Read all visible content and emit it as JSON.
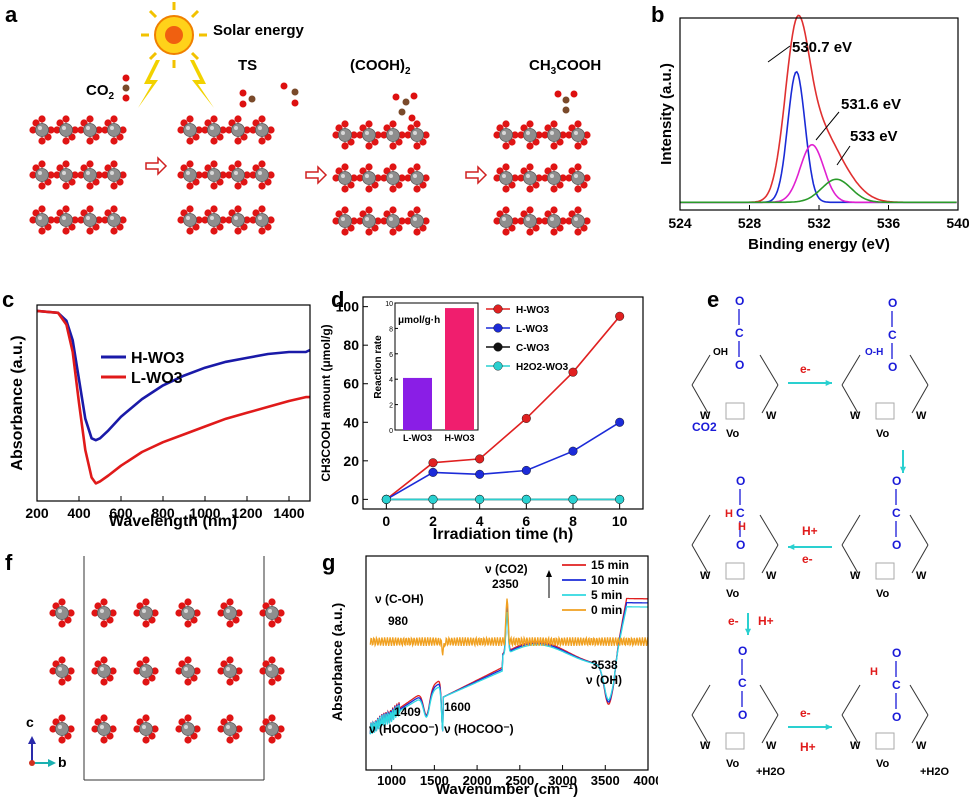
{
  "panel_labels": {
    "a": "a",
    "b": "b",
    "c": "c",
    "d": "d",
    "e": "e",
    "f": "f",
    "g": "g"
  },
  "panel_a": {
    "solar_label": "Solar energy",
    "co2_label": "CO",
    "co2_sub": "2",
    "ts_label": "TS",
    "cooh_label": "(COOH)",
    "cooh_sub": "2",
    "ch3_label": "CH",
    "ch3_sub": "3",
    "ch3_tail": "COOH"
  },
  "panel_e": {
    "e_minus": "e-",
    "h_plus": "H+",
    "vo": "Vo",
    "co2": "CO2",
    "h2o": "+H2O",
    "w": "W"
  },
  "panel_f": {
    "axis_c": "c",
    "axis_b": "b"
  },
  "chart_data": [
    {
      "panel": "b",
      "type": "line",
      "xlabel": "Binding energy (eV)",
      "ylabel": "Intensity (a.u.)",
      "xlim": [
        524,
        540
      ],
      "xticks": [
        524,
        528,
        532,
        536,
        540
      ],
      "annotations": [
        "530.7 eV",
        "531.6 eV",
        "533 eV"
      ],
      "series": [
        {
          "color": "#e03030",
          "peaks": [
            {
              "center": 530.7,
              "height": 0.78,
              "width": 0.95
            },
            {
              "center": 531.8,
              "height": 0.32,
              "width": 1.4
            },
            {
              "center": 533.2,
              "height": 0.13,
              "width": 1.5
            }
          ],
          "baseline": 0.04
        },
        {
          "color": "#1a2bd6",
          "peaks": [
            {
              "center": 530.7,
              "height": 0.68,
              "width": 0.7
            }
          ],
          "baseline": 0.04
        },
        {
          "color": "#e020d0",
          "peaks": [
            {
              "center": 531.6,
              "height": 0.3,
              "width": 0.95
            }
          ],
          "baseline": 0.04
        },
        {
          "color": "#2a9a2a",
          "peaks": [
            {
              "center": 533.0,
              "height": 0.12,
              "width": 1.2
            }
          ],
          "baseline": 0.04
        }
      ]
    },
    {
      "panel": "c",
      "type": "line",
      "xlabel": "Wavelength (nm)",
      "ylabel": "Absorbance (a.u.)",
      "xlim": [
        200,
        1500
      ],
      "xticks": [
        200,
        400,
        600,
        800,
        1000,
        1200,
        1400
      ],
      "series": [
        {
          "name": "H-WO3",
          "color": "#1a1aa8",
          "x": [
            200,
            300,
            340,
            370,
            400,
            430,
            460,
            480,
            500,
            540,
            600,
            700,
            800,
            900,
            1000,
            1100,
            1200,
            1300,
            1400,
            1480,
            1500
          ],
          "y": [
            0.97,
            0.96,
            0.92,
            0.82,
            0.62,
            0.42,
            0.32,
            0.31,
            0.32,
            0.36,
            0.43,
            0.52,
            0.59,
            0.64,
            0.68,
            0.71,
            0.73,
            0.75,
            0.76,
            0.76,
            0.77
          ]
        },
        {
          "name": "L-WO3",
          "color": "#e01a1a",
          "x": [
            200,
            300,
            340,
            370,
            400,
            430,
            460,
            480,
            500,
            540,
            600,
            700,
            800,
            900,
            1000,
            1100,
            1200,
            1300,
            1400,
            1480,
            1500
          ],
          "y": [
            0.97,
            0.96,
            0.9,
            0.76,
            0.5,
            0.26,
            0.12,
            0.09,
            0.1,
            0.13,
            0.18,
            0.25,
            0.3,
            0.34,
            0.38,
            0.42,
            0.45,
            0.48,
            0.51,
            0.53,
            0.53
          ]
        }
      ]
    },
    {
      "panel": "d",
      "type": "line",
      "xlabel": "Irradiation time (h)",
      "ylabel": "CH3COOH amount (μmol/g)",
      "xlim": [
        -1,
        11
      ],
      "ylim": [
        -5,
        105
      ],
      "xticks": [
        0,
        2,
        4,
        6,
        8,
        10
      ],
      "yticks": [
        0,
        20,
        40,
        60,
        80,
        100
      ],
      "series": [
        {
          "name": "H-WO3",
          "color": "#e02020",
          "x": [
            0,
            2,
            4,
            6,
            8,
            10
          ],
          "y": [
            0,
            19,
            21,
            42,
            66,
            95
          ]
        },
        {
          "name": "L-WO3",
          "color": "#1c2bd8",
          "x": [
            0,
            2,
            4,
            6,
            8,
            10
          ],
          "y": [
            0,
            14,
            13,
            15,
            25,
            40
          ]
        },
        {
          "name": "C-WO3",
          "color": "#111111",
          "x": [
            0,
            2,
            4,
            6,
            8,
            10
          ],
          "y": [
            0,
            0,
            0,
            0,
            0,
            0
          ]
        },
        {
          "name": "H2O2-WO3",
          "color": "#2ad0d0",
          "x": [
            0,
            2,
            4,
            6,
            8,
            10
          ],
          "y": [
            0,
            0,
            0,
            0,
            0,
            0
          ]
        }
      ],
      "inset": {
        "type": "bar",
        "ylabel": "Reaction rate",
        "unit": "μmol/g·h",
        "categories": [
          "L-WO3",
          "H-WO3"
        ],
        "values": [
          4.1,
          9.6
        ],
        "colors": [
          "#8a1ee6",
          "#f01e6e"
        ],
        "ylim": [
          0,
          10
        ],
        "yticks": [
          0,
          2,
          4,
          6,
          8,
          10
        ]
      }
    },
    {
      "panel": "g",
      "type": "line",
      "xlabel": "Wavenumber (cm⁻¹)",
      "ylabel": "Absorbance (a.u.)",
      "xlim": [
        700,
        4000
      ],
      "xticks": [
        1000,
        1500,
        2000,
        2500,
        3000,
        3500,
        4000
      ],
      "annotations": [
        "ν (C-OH)",
        "980",
        "ν (CO2)",
        "2350",
        "1409",
        "ν (HOCOO⁻)",
        "1600",
        "ν (HOCOO⁻)",
        "3538",
        "ν (OH)"
      ],
      "series": [
        {
          "name": "15 min",
          "color": "#e02020"
        },
        {
          "name": "10 min",
          "color": "#1c2bd8"
        },
        {
          "name": "5 min",
          "color": "#30d8e0"
        },
        {
          "name": "0 min",
          "color": "#f0a020"
        }
      ]
    }
  ]
}
